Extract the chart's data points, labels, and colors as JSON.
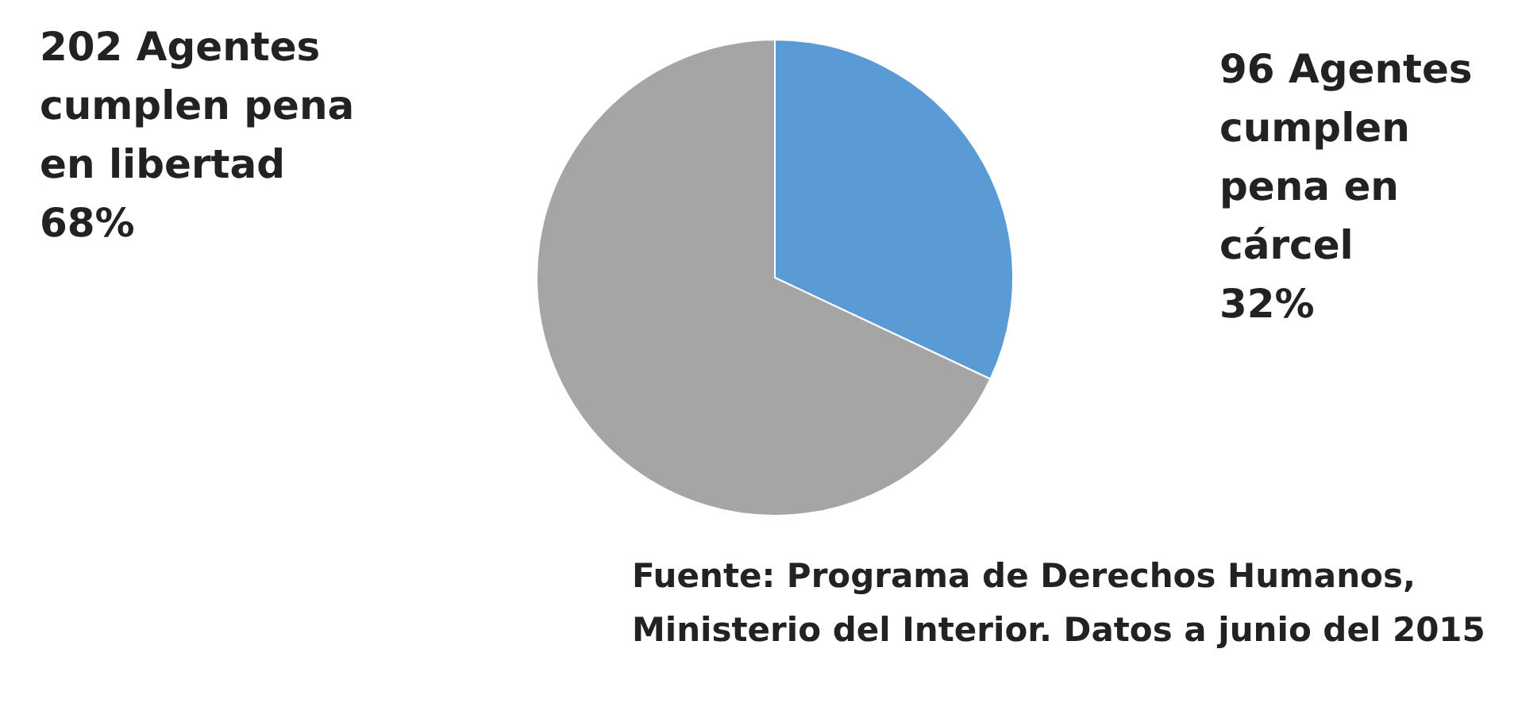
{
  "chart_data": {
    "type": "pie",
    "categories": [
      "96 Agentes cumplen pena en cárcel",
      "202 Agentes cumplen pena en libertad"
    ],
    "values": [
      32,
      68
    ],
    "value_labels": [
      "32%",
      "68%"
    ],
    "colors": [
      "#5b9bd5",
      "#a5a5a5"
    ],
    "legend": false,
    "annotations": [
      "Fuente: Programa de Derechos Humanos, Ministerio del Interior. Datos a junio del 2015"
    ]
  }
}
